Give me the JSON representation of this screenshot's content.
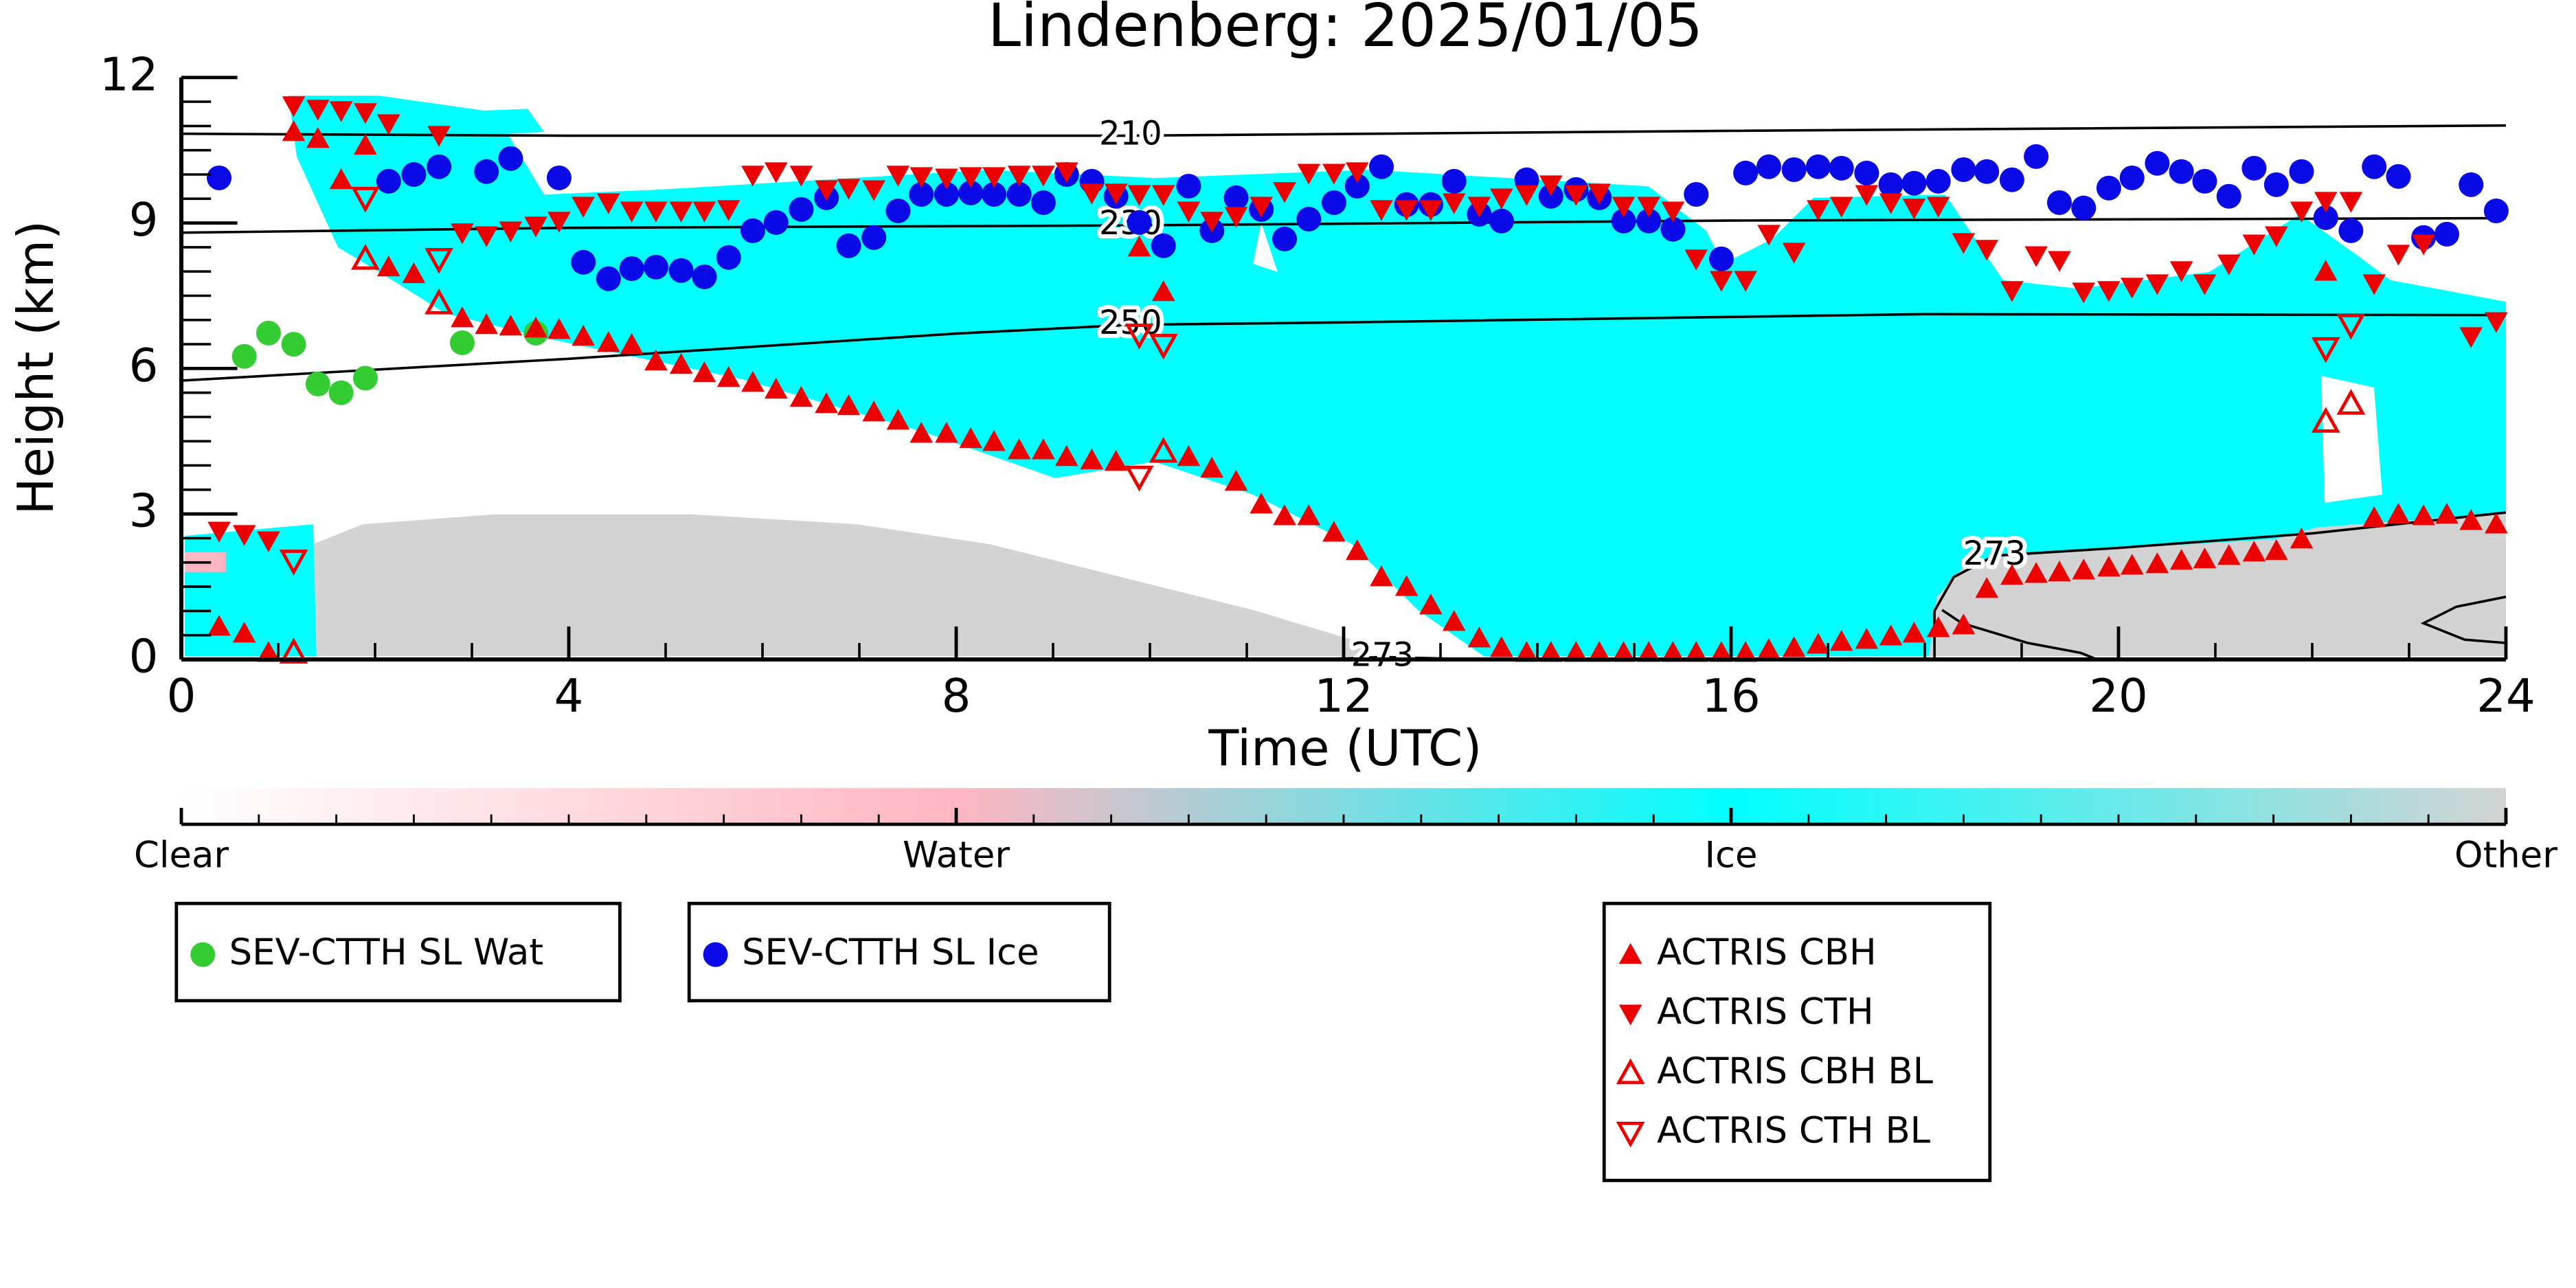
{
  "chart_data": {
    "type": "scatter",
    "title": "Lindenberg: 2025/01/05",
    "x_label": "Time (UTC)",
    "y_label": "Height (km)",
    "xlim": [
      0,
      24
    ],
    "xticks": [
      0,
      4,
      8,
      12,
      16,
      20,
      24
    ],
    "ylim": [
      0,
      12
    ],
    "yticks": [
      0,
      3,
      6,
      9,
      12
    ],
    "series": [
      {
        "name": "SEV-CTTH SL Wat",
        "color": "#33cc33",
        "marker": "circle",
        "x": [
          0.65,
          0.9,
          1.16,
          1.41,
          1.65,
          1.9,
          2.9,
          3.66
        ],
        "values": [
          6.25,
          6.73,
          6.5,
          5.68,
          5.5,
          5.8,
          6.53,
          6.73
        ]
      },
      {
        "name": "SEV-CTTH SL Ice",
        "color": "#0a0ae6",
        "marker": "circle",
        "x": [
          0.39,
          2.14,
          2.4,
          2.66,
          3.15,
          3.4,
          3.9,
          4.15,
          4.41,
          4.65,
          4.9,
          5.16,
          5.4,
          5.65,
          5.9,
          6.14,
          6.4,
          6.66,
          6.89,
          7.15,
          7.4,
          7.64,
          7.9,
          8.15,
          8.39,
          8.65,
          8.9,
          9.14,
          9.4,
          9.65,
          9.89,
          10.14,
          10.4,
          10.64,
          10.89,
          11.15,
          11.39,
          11.64,
          11.9,
          12.14,
          12.39,
          12.65,
          12.9,
          13.14,
          13.4,
          13.63,
          13.89,
          14.14,
          14.4,
          14.64,
          14.89,
          15.15,
          15.4,
          15.64,
          15.9,
          16.15,
          16.39,
          16.65,
          16.9,
          17.14,
          17.4,
          17.65,
          17.89,
          18.14,
          18.4,
          18.64,
          18.9,
          19.15,
          19.39,
          19.64,
          19.9,
          20.14,
          20.4,
          20.65,
          20.89,
          21.14,
          21.4,
          21.63,
          21.89,
          22.14,
          22.4,
          22.64,
          22.89,
          23.15,
          23.39,
          23.64,
          23.9
        ],
        "values": [
          9.93,
          9.86,
          10.0,
          10.16,
          10.06,
          10.33,
          9.93,
          8.19,
          7.85,
          8.06,
          8.09,
          8.02,
          7.89,
          8.29,
          8.84,
          9.01,
          9.28,
          9.52,
          8.53,
          8.7,
          9.25,
          9.59,
          9.59,
          9.62,
          9.59,
          9.59,
          9.42,
          10.0,
          9.86,
          9.55,
          9.01,
          8.53,
          9.76,
          8.84,
          9.52,
          9.28,
          8.67,
          9.08,
          9.42,
          9.76,
          10.16,
          9.38,
          9.38,
          9.86,
          9.18,
          9.04,
          9.89,
          9.55,
          9.69,
          9.52,
          9.04,
          9.04,
          8.87,
          9.59,
          8.26,
          10.03,
          10.16,
          10.1,
          10.16,
          10.13,
          10.03,
          9.79,
          9.82,
          9.86,
          10.1,
          10.06,
          9.89,
          10.37,
          9.42,
          9.31,
          9.72,
          9.93,
          10.23,
          10.06,
          9.86,
          9.55,
          10.13,
          9.79,
          10.06,
          9.11,
          8.84,
          10.16,
          9.96,
          8.7,
          8.77,
          9.79,
          9.25
        ]
      },
      {
        "name": "ACTRIS CBH",
        "color": "#ee0000",
        "marker": "triangle-up",
        "x": [
          0.39,
          0.65,
          0.9,
          1.16,
          1.41,
          1.65,
          1.9,
          2.14,
          2.4,
          2.9,
          3.15,
          3.4,
          3.66,
          3.9,
          4.15,
          4.41,
          4.65,
          4.9,
          5.16,
          5.4,
          5.65,
          5.9,
          6.14,
          6.4,
          6.66,
          6.89,
          7.15,
          7.4,
          7.64,
          7.9,
          8.15,
          8.39,
          8.65,
          8.9,
          9.14,
          9.4,
          9.65,
          9.89,
          10.14,
          10.4,
          10.64,
          10.89,
          11.15,
          11.39,
          11.64,
          11.9,
          12.14,
          12.39,
          12.65,
          12.9,
          13.14,
          13.4,
          13.63,
          13.89,
          14.14,
          14.4,
          14.64,
          14.89,
          15.15,
          15.4,
          15.64,
          15.9,
          16.15,
          16.39,
          16.65,
          16.9,
          17.14,
          17.4,
          17.65,
          17.89,
          18.14,
          18.4,
          18.64,
          18.9,
          19.15,
          19.39,
          19.64,
          19.9,
          20.14,
          20.4,
          20.65,
          20.89,
          21.14,
          21.4,
          21.63,
          21.89,
          22.14,
          22.64,
          22.89,
          23.15,
          23.39,
          23.64,
          23.9
        ],
        "values": [
          0.68,
          0.54,
          0.14,
          10.88,
          10.74,
          9.89,
          10.6,
          8.09,
          7.95,
          7.04,
          6.9,
          6.87,
          6.83,
          6.8,
          6.66,
          6.53,
          6.49,
          6.15,
          6.08,
          5.91,
          5.81,
          5.71,
          5.57,
          5.4,
          5.27,
          5.23,
          5.1,
          4.93,
          4.66,
          4.66,
          4.55,
          4.49,
          4.32,
          4.32,
          4.18,
          4.11,
          4.08,
          8.5,
          7.58,
          4.18,
          3.94,
          3.67,
          3.2,
          2.96,
          2.96,
          2.62,
          2.24,
          1.7,
          1.5,
          1.12,
          0.78,
          0.44,
          0.24,
          0.14,
          0.14,
          0.14,
          0.14,
          0.14,
          0.14,
          0.14,
          0.14,
          0.14,
          0.14,
          0.2,
          0.24,
          0.31,
          0.37,
          0.41,
          0.48,
          0.54,
          0.65,
          0.71,
          1.46,
          1.73,
          1.77,
          1.8,
          1.84,
          1.9,
          1.94,
          1.97,
          2.04,
          2.07,
          2.14,
          2.21,
          2.24,
          2.48,
          8.0,
          2.92,
          2.99,
          2.96,
          2.99,
          2.86,
          2.79
        ]
      },
      {
        "name": "ACTRIS CTH",
        "color": "#ee0000",
        "marker": "triangle-down",
        "x": [
          0.39,
          0.65,
          0.9,
          1.16,
          1.41,
          1.65,
          1.9,
          2.14,
          2.66,
          2.9,
          3.15,
          3.4,
          3.66,
          3.9,
          4.15,
          4.41,
          4.65,
          4.9,
          5.16,
          5.4,
          5.65,
          5.9,
          6.14,
          6.4,
          6.66,
          6.89,
          7.15,
          7.4,
          7.64,
          7.9,
          8.15,
          8.39,
          8.65,
          8.9,
          9.14,
          9.4,
          9.65,
          9.89,
          10.14,
          10.4,
          10.64,
          10.89,
          11.15,
          11.39,
          11.64,
          11.9,
          12.14,
          12.39,
          12.65,
          12.9,
          13.14,
          13.4,
          13.63,
          13.89,
          14.14,
          14.4,
          14.64,
          14.89,
          15.15,
          15.4,
          15.64,
          15.9,
          16.15,
          16.39,
          16.65,
          16.9,
          17.14,
          17.4,
          17.65,
          17.89,
          18.14,
          18.4,
          18.64,
          18.9,
          19.15,
          19.39,
          19.64,
          19.9,
          20.14,
          20.4,
          20.65,
          20.89,
          21.14,
          21.4,
          21.63,
          21.89,
          22.14,
          22.4,
          22.64,
          22.89,
          23.15,
          23.64,
          23.9
        ],
        "values": [
          2.65,
          2.58,
          2.45,
          11.42,
          11.35,
          11.32,
          11.28,
          11.05,
          10.81,
          8.8,
          8.74,
          8.84,
          8.94,
          9.04,
          9.35,
          9.42,
          9.25,
          9.25,
          9.25,
          9.25,
          9.28,
          9.99,
          10.06,
          9.99,
          9.69,
          9.72,
          9.69,
          9.99,
          9.96,
          9.93,
          9.96,
          9.96,
          9.99,
          9.99,
          10.06,
          9.62,
          9.62,
          9.59,
          9.59,
          9.25,
          9.04,
          9.14,
          9.35,
          9.65,
          10.03,
          10.03,
          10.06,
          9.28,
          9.28,
          9.28,
          9.42,
          9.35,
          9.52,
          9.59,
          9.79,
          9.59,
          9.62,
          9.35,
          9.35,
          9.25,
          8.26,
          7.82,
          7.82,
          8.77,
          8.4,
          9.28,
          9.35,
          9.59,
          9.42,
          9.31,
          9.35,
          8.6,
          8.46,
          7.61,
          8.33,
          8.23,
          7.58,
          7.61,
          7.68,
          7.75,
          8.02,
          7.75,
          8.16,
          8.57,
          8.74,
          9.25,
          9.45,
          9.45,
          7.75,
          8.36,
          8.57,
          6.66,
          6.97
        ]
      },
      {
        "name": "ACTRIS CBH BL",
        "color": "#ee0000",
        "marker": "triangle-up-open",
        "x": [
          1.16,
          1.9,
          2.66,
          10.14,
          22.14,
          22.4
        ],
        "values": [
          0.14,
          8.26,
          7.34,
          4.28,
          4.9,
          5.27
        ]
      },
      {
        "name": "ACTRIS CTH BL",
        "color": "#ee0000",
        "marker": "triangle-down-open",
        "x": [
          1.16,
          1.9,
          2.66,
          9.89,
          9.89,
          10.14,
          22.14,
          22.4
        ],
        "values": [
          2.04,
          9.52,
          8.26,
          3.77,
          6.7,
          6.49,
          6.42,
          6.9
        ]
      }
    ],
    "isotherms": [
      {
        "label": "210",
        "x": [
          0,
          4,
          9.8,
          16,
          24
        ],
        "y": [
          10.84,
          10.8,
          10.8,
          10.9,
          11.01
        ]
      },
      {
        "label": "230",
        "x": [
          0,
          4,
          9.8,
          16,
          24
        ],
        "y": [
          8.8,
          8.9,
          8.95,
          9.05,
          9.1
        ]
      },
      {
        "label": "250",
        "x": [
          0,
          4,
          8,
          9.8,
          12,
          18,
          24
        ],
        "y": [
          5.75,
          6.2,
          6.72,
          6.9,
          6.95,
          7.12,
          7.1
        ]
      },
      {
        "label": "273",
        "x": [
          11.5,
          12.0,
          12.4,
          13.0,
          13.6
        ],
        "y": [
          0.0,
          0.02,
          0.05,
          0.02,
          0.0
        ]
      },
      {
        "label": "273",
        "x": [
          18.1,
          18.1,
          18.3,
          18.72,
          20,
          22,
          24
        ],
        "y": [
          0.0,
          1.0,
          1.7,
          2.14,
          2.3,
          2.6,
          3.03
        ]
      }
    ],
    "colorbar": {
      "labels": [
        "Clear",
        "Water",
        "Ice",
        "Other"
      ],
      "colors": [
        "#ffffff",
        "#ffb6c1",
        "#00ffff",
        "#d3d3d3"
      ]
    }
  }
}
